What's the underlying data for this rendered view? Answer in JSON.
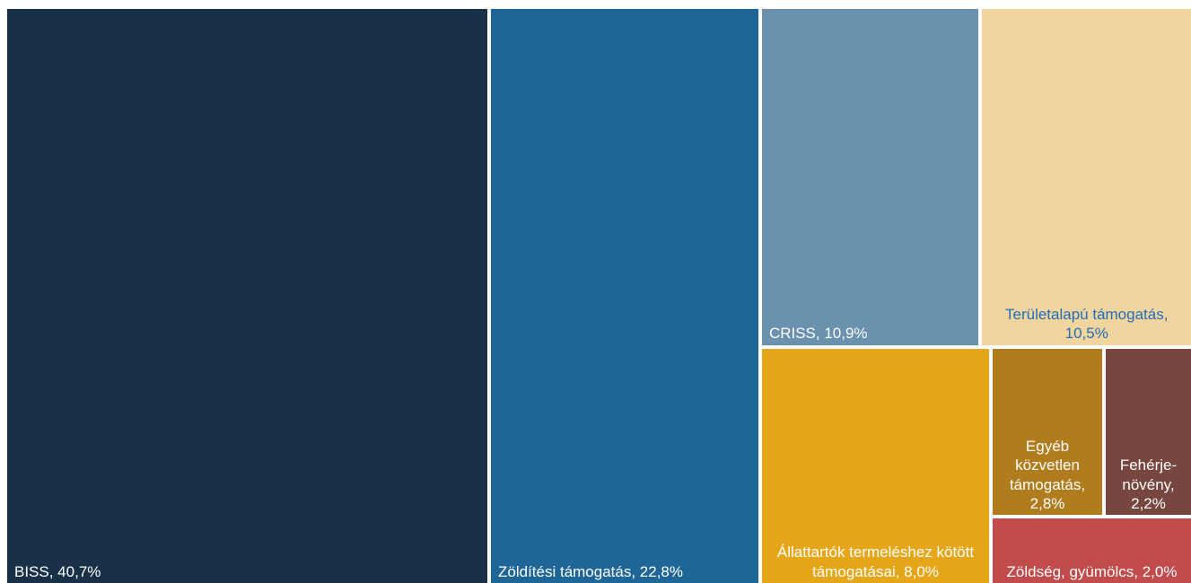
{
  "chart_data": {
    "type": "treemap",
    "values": [
      40.7,
      22.8,
      10.9,
      10.5,
      8.0,
      2.8,
      2.2,
      2.0
    ],
    "value_labels": [
      "BISS, 40,7%",
      "Zöldítési támogatás, 22,8%",
      "CRISS, 10,9%",
      "Területalapú támogatás, 10,5%",
      "Állattartók termeléshez kötött támogatásai, 8,0%",
      "Egyéb közvetlen támogatás, 2,8%",
      "Fehérje-növény, 2,2%",
      "Zöldség, gyümölcs, 2,0%"
    ],
    "colors": [
      "#183146",
      "#1f6698",
      "#6a91ad",
      "#f2d49f",
      "#e6a619",
      "#b07c1e",
      "#77463e",
      "#c24b4b"
    ],
    "label_colors": [
      "#ffffff",
      "#ffffff",
      "#ffffff",
      "#1f6fb5",
      "#ffffff",
      "#ffffff",
      "#ffffff",
      "#ffffff"
    ]
  }
}
